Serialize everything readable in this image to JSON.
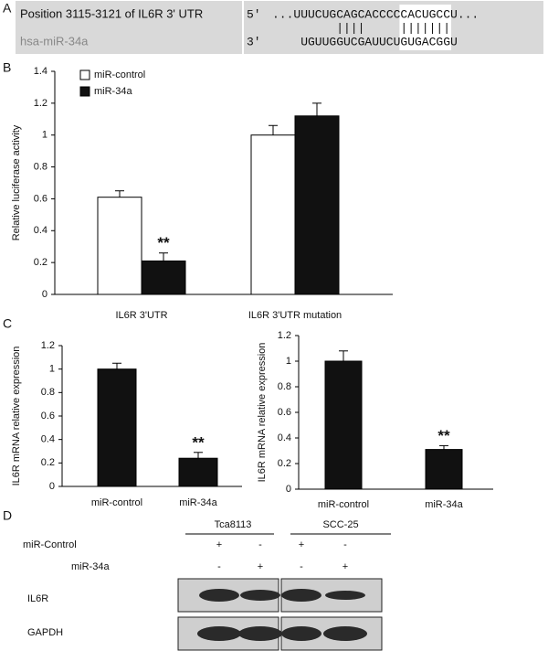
{
  "panel_labels": [
    "A",
    "B",
    "C",
    "D"
  ],
  "panel_a": {
    "target_label": "Position 3115-3121 of IL6R 3' UTR",
    "mirna_label": "hsa-miR-34a",
    "target_end": "5'",
    "target_seq": "...UUUCUGCAGCACCCCCACUGCCU...",
    "pairing": "||||     |||||||",
    "mirna_end": "3'",
    "mirna_seq": "UGUUGGUCGAUUCUGUGACGGU"
  },
  "chart_data": [
    {
      "type": "bar",
      "y_label": "Relative luciferase activity",
      "categories": [
        "IL6R 3'UTR",
        "IL6R 3'UTR mutation"
      ],
      "series": [
        {
          "name": "miR-control",
          "color": "#ffffff",
          "values": [
            0.61,
            1.0
          ],
          "errors": [
            0.04,
            0.06
          ]
        },
        {
          "name": "miR-34a",
          "color": "#111111",
          "values": [
            0.21,
            1.12
          ],
          "errors": [
            0.05,
            0.08
          ]
        }
      ],
      "annotation": "**",
      "ylim": [
        0,
        1.4
      ],
      "yticks": [
        0,
        0.2,
        0.4,
        0.6,
        0.8,
        1,
        1.2,
        1.4
      ],
      "legend": "top-left"
    },
    {
      "type": "bar",
      "y_label": "IL6R mRNA relative expression",
      "categories": [
        "miR-control",
        "miR-34a"
      ],
      "series": [
        {
          "color": "#111111",
          "values": [
            1.0,
            0.24
          ],
          "errors": [
            0.05,
            0.05
          ]
        }
      ],
      "annotation": "**",
      "ylim": [
        0,
        1.2
      ],
      "yticks": [
        0,
        0.2,
        0.4,
        0.6,
        0.8,
        1,
        1.2
      ]
    },
    {
      "type": "bar",
      "y_label": "IL6R mRNA relative expression",
      "categories": [
        "miR-control",
        "miR-34a"
      ],
      "series": [
        {
          "color": "#111111",
          "values": [
            1.0,
            0.31
          ],
          "errors": [
            0.08,
            0.03
          ]
        }
      ],
      "annotation": "**",
      "ylim": [
        0,
        1.2
      ],
      "yticks": [
        0,
        0.2,
        0.4,
        0.6,
        0.8,
        1,
        1.2
      ]
    }
  ],
  "panel_d": {
    "cell_lines": [
      "Tca8113",
      "SCC-25"
    ],
    "conditions": [
      "miR-Control",
      "miR-34a"
    ],
    "signs": [
      [
        "+",
        "-",
        "+",
        "-"
      ],
      [
        "-",
        "+",
        "-",
        "+"
      ]
    ],
    "proteins": [
      "IL6R",
      "GAPDH"
    ]
  }
}
